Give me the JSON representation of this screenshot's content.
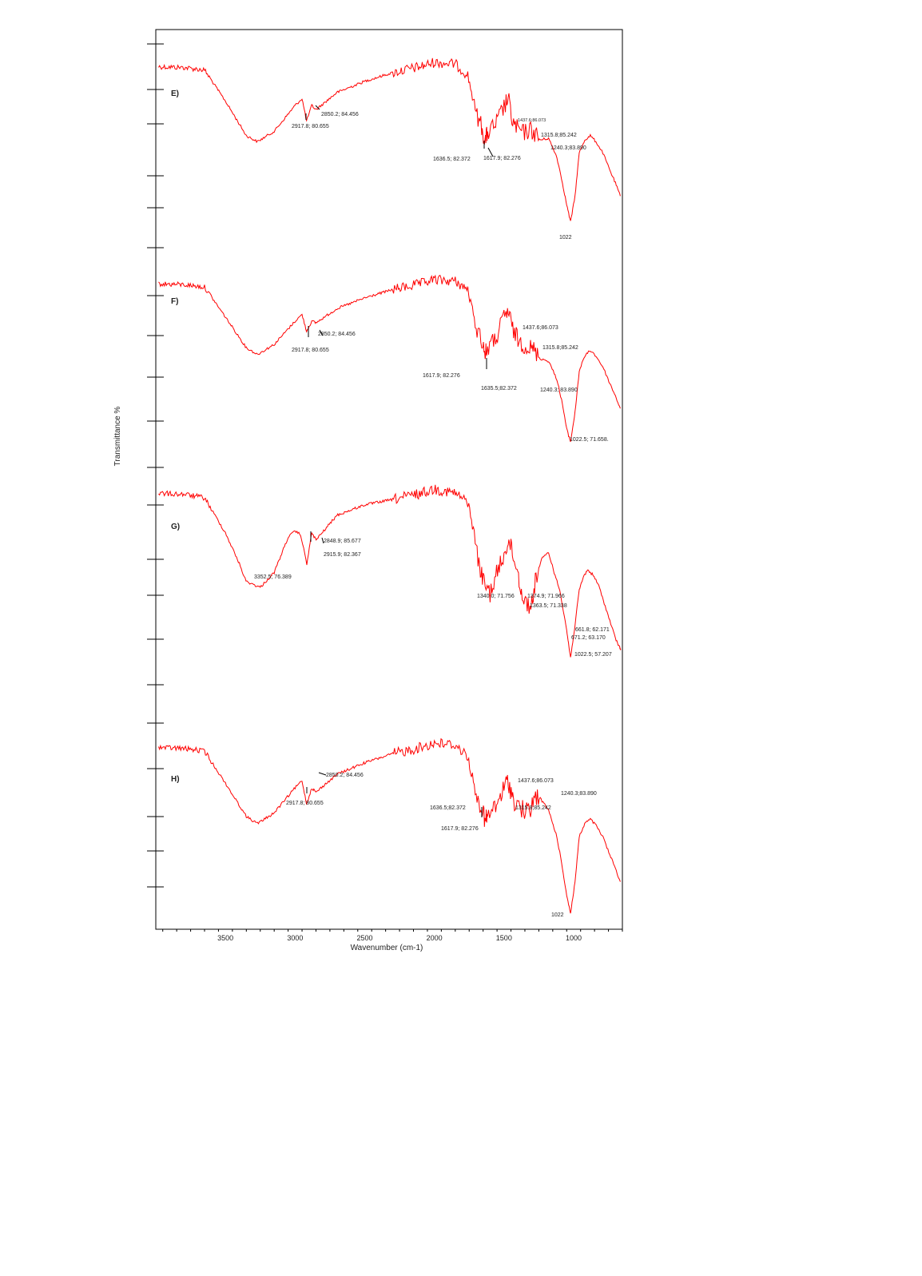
{
  "chart_data": {
    "type": "line",
    "title": "",
    "xlabel": "Wavenumber (cm-1)",
    "ylabel": "Transmittance %",
    "x_direction": "reversed",
    "xlim": [
      4000,
      650
    ],
    "x_ticks": [
      "3500",
      "3000",
      "2500",
      "2000",
      "1500",
      "1000"
    ],
    "grid": false,
    "series_color": "#ff0000",
    "series": [
      {
        "name": "E)",
        "points": [
          [
            3980,
            0.05
          ],
          [
            3800,
            0.06
          ],
          [
            3650,
            0.09
          ],
          [
            3500,
            0.45
          ],
          [
            3350,
            0.85
          ],
          [
            3270,
            0.92
          ],
          [
            3150,
            0.8
          ],
          [
            3000,
            0.5
          ],
          [
            2950,
            0.42
          ],
          [
            2917.8,
            0.68
          ],
          [
            2880,
            0.5
          ],
          [
            2850.2,
            0.55
          ],
          [
            2700,
            0.35
          ],
          [
            2500,
            0.22
          ],
          [
            2300,
            0.12
          ],
          [
            2100,
            0.05
          ],
          [
            2000,
            0.0
          ],
          [
            1850,
            0.02
          ],
          [
            1760,
            0.15
          ],
          [
            1700,
            0.58
          ],
          [
            1660,
            0.75
          ],
          [
            1636.5,
            0.92
          ],
          [
            1617.9,
            0.82
          ],
          [
            1560,
            0.72
          ],
          [
            1500,
            0.52
          ],
          [
            1470,
            0.42
          ],
          [
            1437.6,
            0.7
          ],
          [
            1400,
            0.78
          ],
          [
            1360,
            0.82
          ],
          [
            1315.8,
            0.78
          ],
          [
            1280,
            0.82
          ],
          [
            1240.3,
            0.9
          ],
          [
            1180,
            0.88
          ],
          [
            1120,
            1.1
          ],
          [
            1080,
            1.4
          ],
          [
            1050,
            1.65
          ],
          [
            1022,
            1.85
          ],
          [
            990,
            1.55
          ],
          [
            960,
            1.05
          ],
          [
            920,
            0.9
          ],
          [
            880,
            0.85
          ],
          [
            840,
            0.92
          ],
          [
            790,
            1.05
          ],
          [
            740,
            1.25
          ],
          [
            700,
            1.4
          ],
          [
            665,
            1.55
          ]
        ],
        "annotations": [
          "2850.2; 84.456",
          "2917.8; 80.655",
          "1437.6;86.073",
          "1315.8;85.242",
          "1240.3;83.890",
          "1636.5; 82.372",
          "1617.9; 82.276",
          "1022"
        ]
      },
      {
        "name": "F)",
        "points": [
          [
            3980,
            0.05
          ],
          [
            3800,
            0.06
          ],
          [
            3650,
            0.09
          ],
          [
            3500,
            0.45
          ],
          [
            3350,
            0.82
          ],
          [
            3270,
            0.9
          ],
          [
            3150,
            0.78
          ],
          [
            3000,
            0.5
          ],
          [
            2950,
            0.42
          ],
          [
            2917.8,
            0.62
          ],
          [
            2880,
            0.5
          ],
          [
            2850.2,
            0.52
          ],
          [
            2700,
            0.35
          ],
          [
            2500,
            0.22
          ],
          [
            2300,
            0.12
          ],
          [
            2100,
            0.05
          ],
          [
            2000,
            0.0
          ],
          [
            1850,
            0.02
          ],
          [
            1760,
            0.12
          ],
          [
            1700,
            0.58
          ],
          [
            1660,
            0.72
          ],
          [
            1635.5,
            0.9
          ],
          [
            1617.9,
            0.82
          ],
          [
            1560,
            0.72
          ],
          [
            1500,
            0.45
          ],
          [
            1470,
            0.38
          ],
          [
            1437.6,
            0.6
          ],
          [
            1400,
            0.72
          ],
          [
            1360,
            0.78
          ],
          [
            1315.8,
            0.82
          ],
          [
            1280,
            0.85
          ],
          [
            1240.3,
            0.95
          ],
          [
            1180,
            0.98
          ],
          [
            1120,
            1.2
          ],
          [
            1080,
            1.5
          ],
          [
            1050,
            1.8
          ],
          [
            1022.5,
            1.95
          ],
          [
            990,
            1.6
          ],
          [
            960,
            1.1
          ],
          [
            920,
            0.92
          ],
          [
            880,
            0.85
          ],
          [
            840,
            0.92
          ],
          [
            790,
            1.05
          ],
          [
            740,
            1.25
          ],
          [
            700,
            1.4
          ],
          [
            665,
            1.55
          ]
        ],
        "annotations": [
          "2850.2; 84.456",
          "2917.8; 80.655",
          "1437.6;86.073",
          "1315.8;85.242",
          "1617.9; 82.276",
          "1635.5;82.372",
          "1240.3; 83.890",
          "1022.5; 71.658."
        ]
      },
      {
        "name": "G)",
        "points": [
          [
            3980,
            0.05
          ],
          [
            3800,
            0.06
          ],
          [
            3650,
            0.1
          ],
          [
            3500,
            0.5
          ],
          [
            3400,
            0.85
          ],
          [
            3352.5,
            1.05
          ],
          [
            3250,
            1.12
          ],
          [
            3150,
            0.95
          ],
          [
            3050,
            0.55
          ],
          [
            3000,
            0.48
          ],
          [
            2960,
            0.52
          ],
          [
            2915.9,
            0.85
          ],
          [
            2880,
            0.5
          ],
          [
            2848.9,
            0.58
          ],
          [
            2700,
            0.3
          ],
          [
            2500,
            0.18
          ],
          [
            2300,
            0.12
          ],
          [
            2100,
            0.05
          ],
          [
            2000,
            0.0
          ],
          [
            1850,
            0.05
          ],
          [
            1760,
            0.15
          ],
          [
            1720,
            0.45
          ],
          [
            1680,
            0.85
          ],
          [
            1650,
            1.05
          ],
          [
            1600,
            1.18
          ],
          [
            1560,
            1.0
          ],
          [
            1500,
            0.75
          ],
          [
            1470,
            0.58
          ],
          [
            1440,
            0.72
          ],
          [
            1400,
            0.95
          ],
          [
            1374.9,
            1.18
          ],
          [
            1340,
            1.3
          ],
          [
            1300,
            1.32
          ],
          [
            1270,
            1.0
          ],
          [
            1230,
            0.8
          ],
          [
            1180,
            0.72
          ],
          [
            1140,
            0.95
          ],
          [
            1100,
            1.15
          ],
          [
            1060,
            1.5
          ],
          [
            1040,
            1.72
          ],
          [
            1022.5,
            1.92
          ],
          [
            990,
            1.55
          ],
          [
            960,
            1.15
          ],
          [
            930,
            1.0
          ],
          [
            900,
            0.92
          ],
          [
            860,
            0.98
          ],
          [
            820,
            1.1
          ],
          [
            780,
            1.3
          ],
          [
            740,
            1.5
          ],
          [
            700,
            1.7
          ],
          [
            671.2,
            1.8
          ],
          [
            661.8,
            1.82
          ]
        ],
        "annotations": [
          "2848.9; 85.677",
          "2915.9; 82.367",
          "3352.5; 76.389",
          "1340.0; 71.756",
          "1374.9; 71.966",
          "1363.5; 71.338",
          "661.8; 62.171",
          "671.2; 63.170",
          "1022.5; 57.207"
        ]
      },
      {
        "name": "H)",
        "points": [
          [
            3980,
            0.05
          ],
          [
            3800,
            0.06
          ],
          [
            3650,
            0.09
          ],
          [
            3500,
            0.45
          ],
          [
            3350,
            0.82
          ],
          [
            3270,
            0.9
          ],
          [
            3150,
            0.78
          ],
          [
            3000,
            0.5
          ],
          [
            2950,
            0.42
          ],
          [
            2917.8,
            0.68
          ],
          [
            2880,
            0.5
          ],
          [
            2850.2,
            0.55
          ],
          [
            2700,
            0.35
          ],
          [
            2500,
            0.22
          ],
          [
            2300,
            0.12
          ],
          [
            2100,
            0.05
          ],
          [
            2000,
            0.0
          ],
          [
            1850,
            0.02
          ],
          [
            1760,
            0.15
          ],
          [
            1700,
            0.58
          ],
          [
            1660,
            0.72
          ],
          [
            1636.5,
            0.88
          ],
          [
            1617.9,
            0.82
          ],
          [
            1560,
            0.72
          ],
          [
            1500,
            0.5
          ],
          [
            1470,
            0.42
          ],
          [
            1437.6,
            0.62
          ],
          [
            1400,
            0.7
          ],
          [
            1360,
            0.75
          ],
          [
            1315.8,
            0.78
          ],
          [
            1280,
            0.6
          ],
          [
            1240.3,
            0.62
          ],
          [
            1180,
            0.75
          ],
          [
            1120,
            1.05
          ],
          [
            1080,
            1.4
          ],
          [
            1050,
            1.7
          ],
          [
            1022,
            1.9
          ],
          [
            990,
            1.55
          ],
          [
            960,
            1.05
          ],
          [
            920,
            0.9
          ],
          [
            880,
            0.85
          ],
          [
            840,
            0.92
          ],
          [
            790,
            1.05
          ],
          [
            740,
            1.25
          ],
          [
            700,
            1.4
          ],
          [
            665,
            1.55
          ]
        ],
        "annotations": [
          "2850.2; 84.456",
          "2917.8; 80.655",
          "1437.6;86.073",
          "1240.3;83.890",
          "1636.5;82.372",
          "1315.8;85.242",
          "1617.9; 82.276",
          "1022"
        ]
      }
    ]
  }
}
